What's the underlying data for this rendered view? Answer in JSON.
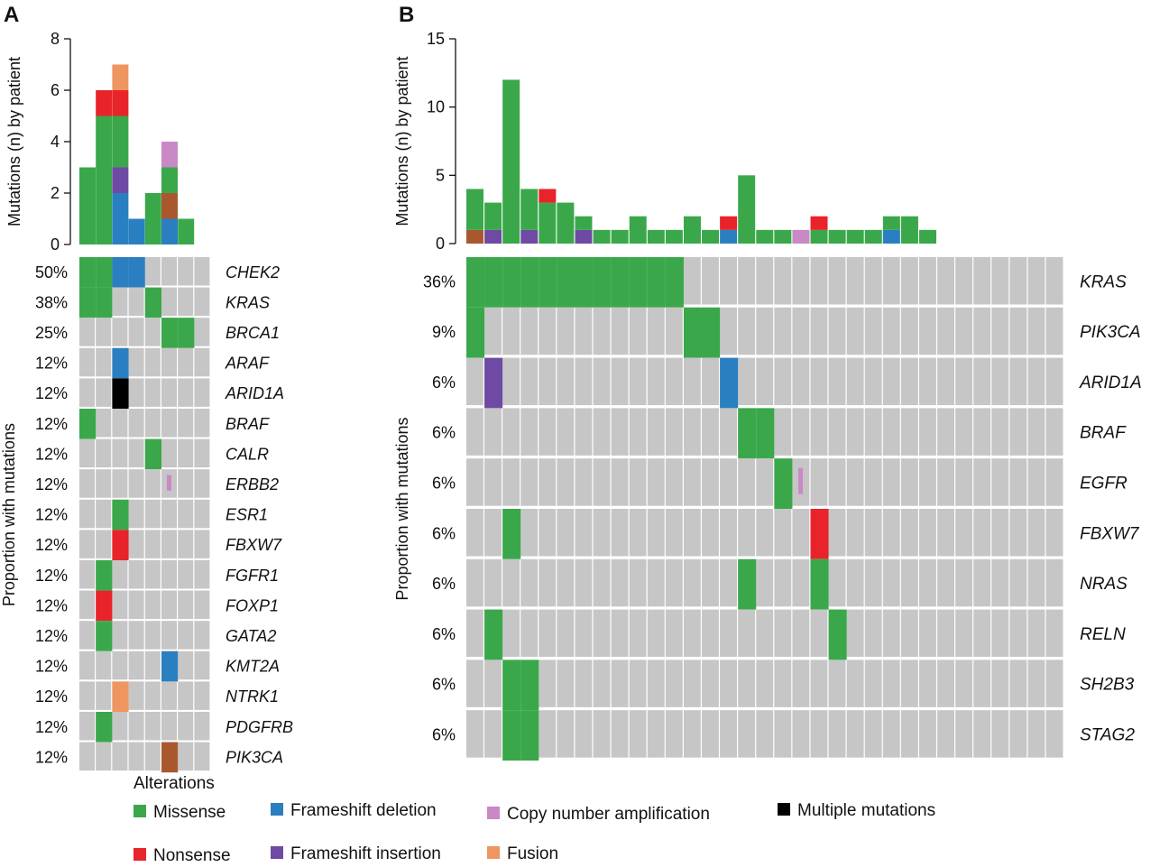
{
  "colors": {
    "missense": "#3aa84a",
    "nonsense": "#e8232a",
    "frameshift_deletion": "#2a7fc0",
    "frameshift_insertion": "#6f4aa4",
    "copy_number_amplification": "#c889c4",
    "multiple_mutations": "#000000",
    "fusion": "#ee9560",
    "inframe_deletion": "#a9582e",
    "empty": "#c6c6c6"
  },
  "legend": {
    "title": "Alterations",
    "items": [
      {
        "key": "missense",
        "label": "Missense"
      },
      {
        "key": "frameshift_deletion",
        "label": "Frameshift deletion"
      },
      {
        "key": "copy_number_amplification",
        "label": "Copy number amplification"
      },
      {
        "key": "multiple_mutations",
        "label": "Multiple mutations"
      },
      {
        "key": "nonsense",
        "label": "Nonsense"
      },
      {
        "key": "frameshift_insertion",
        "label": "Frameshift insertion"
      },
      {
        "key": "fusion",
        "label": "Fusion"
      }
    ]
  },
  "chart_data": [
    {
      "panel": "A",
      "type": "bar",
      "ylabel": "Mutations (n) by patient",
      "ylim": [
        0,
        8
      ],
      "yticks": [
        0,
        2,
        4,
        6,
        8
      ],
      "stacks": [
        [
          {
            "t": "missense",
            "v": 3
          }
        ],
        [
          {
            "t": "missense",
            "v": 5
          },
          {
            "t": "nonsense",
            "v": 1
          }
        ],
        [
          {
            "t": "frameshift_deletion",
            "v": 2
          },
          {
            "t": "frameshift_insertion",
            "v": 1
          },
          {
            "t": "missense",
            "v": 2
          },
          {
            "t": "nonsense",
            "v": 1
          },
          {
            "t": "fusion",
            "v": 1
          }
        ],
        [
          {
            "t": "frameshift_deletion",
            "v": 1
          }
        ],
        [
          {
            "t": "missense",
            "v": 2
          }
        ],
        [
          {
            "t": "frameshift_deletion",
            "v": 1
          },
          {
            "t": "inframe_deletion",
            "v": 1
          },
          {
            "t": "missense",
            "v": 1
          },
          {
            "t": "copy_number_amplification",
            "v": 1
          }
        ],
        [
          {
            "t": "missense",
            "v": 1
          }
        ]
      ],
      "heatmap_ylabel": "Proportion with mutations",
      "n_cols": 8,
      "genes": [
        {
          "gene": "CHEK2",
          "pct": "50%",
          "cells": [
            {
              "c": 0,
              "t": "missense"
            },
            {
              "c": 1,
              "t": "missense"
            },
            {
              "c": 2,
              "t": "frameshift_deletion"
            },
            {
              "c": 3,
              "t": "frameshift_deletion"
            }
          ]
        },
        {
          "gene": "KRAS",
          "pct": "38%",
          "cells": [
            {
              "c": 0,
              "t": "missense"
            },
            {
              "c": 1,
              "t": "missense"
            },
            {
              "c": 4,
              "t": "missense"
            }
          ]
        },
        {
          "gene": "BRCA1",
          "pct": "25%",
          "cells": [
            {
              "c": 5,
              "t": "missense"
            },
            {
              "c": 6,
              "t": "missense"
            }
          ]
        },
        {
          "gene": "ARAF",
          "pct": "12%",
          "cells": [
            {
              "c": 2,
              "t": "frameshift_deletion"
            }
          ]
        },
        {
          "gene": "ARID1A",
          "pct": "12%",
          "cells": [
            {
              "c": 2,
              "t": "multiple_mutations"
            }
          ]
        },
        {
          "gene": "BRAF",
          "pct": "12%",
          "cells": [
            {
              "c": 0,
              "t": "missense"
            }
          ]
        },
        {
          "gene": "CALR",
          "pct": "12%",
          "cells": [
            {
              "c": 4,
              "t": "missense"
            }
          ]
        },
        {
          "gene": "ERBB2",
          "pct": "12%",
          "cells": [
            {
              "c": 5,
              "t": "copy_number_amplification",
              "thin": true
            }
          ]
        },
        {
          "gene": "ESR1",
          "pct": "12%",
          "cells": [
            {
              "c": 2,
              "t": "missense"
            }
          ]
        },
        {
          "gene": "FBXW7",
          "pct": "12%",
          "cells": [
            {
              "c": 2,
              "t": "nonsense"
            }
          ]
        },
        {
          "gene": "FGFR1",
          "pct": "12%",
          "cells": [
            {
              "c": 1,
              "t": "missense"
            }
          ]
        },
        {
          "gene": "FOXP1",
          "pct": "12%",
          "cells": [
            {
              "c": 1,
              "t": "nonsense"
            }
          ]
        },
        {
          "gene": "GATA2",
          "pct": "12%",
          "cells": [
            {
              "c": 1,
              "t": "missense"
            }
          ]
        },
        {
          "gene": "KMT2A",
          "pct": "12%",
          "cells": [
            {
              "c": 5,
              "t": "frameshift_deletion"
            }
          ]
        },
        {
          "gene": "NTRK1",
          "pct": "12%",
          "cells": [
            {
              "c": 2,
              "t": "fusion"
            }
          ]
        },
        {
          "gene": "PDGFRB",
          "pct": "12%",
          "cells": [
            {
              "c": 1,
              "t": "missense"
            }
          ]
        },
        {
          "gene": "PIK3CA",
          "pct": "12%",
          "cells": [
            {
              "c": 5,
              "t": "inframe_deletion"
            }
          ]
        }
      ]
    },
    {
      "panel": "B",
      "type": "bar",
      "ylabel": "Mutations (n) by patient",
      "ylim": [
        0,
        15
      ],
      "yticks": [
        0,
        5,
        10,
        15
      ],
      "stacks": [
        [
          {
            "t": "inframe_deletion",
            "v": 1
          },
          {
            "t": "missense",
            "v": 3
          }
        ],
        [
          {
            "t": "frameshift_insertion",
            "v": 1
          },
          {
            "t": "missense",
            "v": 2
          }
        ],
        [
          {
            "t": "missense",
            "v": 12
          }
        ],
        [
          {
            "t": "frameshift_insertion",
            "v": 1
          },
          {
            "t": "missense",
            "v": 3
          }
        ],
        [
          {
            "t": "missense",
            "v": 3
          },
          {
            "t": "nonsense",
            "v": 1
          }
        ],
        [
          {
            "t": "missense",
            "v": 3
          }
        ],
        [
          {
            "t": "frameshift_insertion",
            "v": 1
          },
          {
            "t": "missense",
            "v": 1
          }
        ],
        [
          {
            "t": "missense",
            "v": 1
          }
        ],
        [
          {
            "t": "missense",
            "v": 1
          }
        ],
        [
          {
            "t": "missense",
            "v": 2
          }
        ],
        [
          {
            "t": "missense",
            "v": 1
          }
        ],
        [
          {
            "t": "missense",
            "v": 1
          }
        ],
        [
          {
            "t": "missense",
            "v": 2
          }
        ],
        [
          {
            "t": "missense",
            "v": 1
          }
        ],
        [
          {
            "t": "frameshift_deletion",
            "v": 1
          },
          {
            "t": "nonsense",
            "v": 1
          }
        ],
        [
          {
            "t": "missense",
            "v": 5
          }
        ],
        [
          {
            "t": "missense",
            "v": 1
          }
        ],
        [
          {
            "t": "missense",
            "v": 1
          }
        ],
        [
          {
            "t": "copy_number_amplification",
            "v": 1
          }
        ],
        [
          {
            "t": "missense",
            "v": 1
          },
          {
            "t": "nonsense",
            "v": 1
          }
        ],
        [
          {
            "t": "missense",
            "v": 1
          }
        ],
        [
          {
            "t": "missense",
            "v": 1
          }
        ],
        [
          {
            "t": "missense",
            "v": 1
          }
        ],
        [
          {
            "t": "frameshift_deletion",
            "v": 1
          },
          {
            "t": "missense",
            "v": 1
          }
        ],
        [
          {
            "t": "missense",
            "v": 2
          }
        ],
        [
          {
            "t": "missense",
            "v": 1
          }
        ]
      ],
      "heatmap_ylabel": "Proportion with mutations",
      "n_cols": 33,
      "genes": [
        {
          "gene": "KRAS",
          "pct": "36%",
          "cells": [
            {
              "c": 0,
              "t": "missense"
            },
            {
              "c": 1,
              "t": "missense"
            },
            {
              "c": 2,
              "t": "missense"
            },
            {
              "c": 3,
              "t": "missense"
            },
            {
              "c": 4,
              "t": "missense"
            },
            {
              "c": 5,
              "t": "missense"
            },
            {
              "c": 6,
              "t": "missense"
            },
            {
              "c": 7,
              "t": "missense"
            },
            {
              "c": 8,
              "t": "missense"
            },
            {
              "c": 9,
              "t": "missense"
            },
            {
              "c": 10,
              "t": "missense"
            },
            {
              "c": 11,
              "t": "missense"
            }
          ]
        },
        {
          "gene": "PIK3CA",
          "pct": "9%",
          "cells": [
            {
              "c": 0,
              "t": "missense"
            },
            {
              "c": 12,
              "t": "missense"
            },
            {
              "c": 13,
              "t": "missense"
            }
          ]
        },
        {
          "gene": "ARID1A",
          "pct": "6%",
          "cells": [
            {
              "c": 1,
              "t": "frameshift_insertion"
            },
            {
              "c": 14,
              "t": "frameshift_deletion"
            }
          ]
        },
        {
          "gene": "BRAF",
          "pct": "6%",
          "cells": [
            {
              "c": 15,
              "t": "missense"
            },
            {
              "c": 16,
              "t": "missense"
            }
          ]
        },
        {
          "gene": "EGFR",
          "pct": "6%",
          "cells": [
            {
              "c": 17,
              "t": "missense"
            },
            {
              "c": 18,
              "t": "copy_number_amplification",
              "thin": true
            }
          ]
        },
        {
          "gene": "FBXW7",
          "pct": "6%",
          "cells": [
            {
              "c": 2,
              "t": "missense"
            },
            {
              "c": 19,
              "t": "nonsense"
            }
          ]
        },
        {
          "gene": "NRAS",
          "pct": "6%",
          "cells": [
            {
              "c": 15,
              "t": "missense"
            },
            {
              "c": 19,
              "t": "missense"
            }
          ]
        },
        {
          "gene": "RELN",
          "pct": "6%",
          "cells": [
            {
              "c": 1,
              "t": "missense"
            },
            {
              "c": 20,
              "t": "missense"
            }
          ]
        },
        {
          "gene": "SH2B3",
          "pct": "6%",
          "cells": [
            {
              "c": 2,
              "t": "missense"
            },
            {
              "c": 3,
              "t": "missense"
            }
          ]
        },
        {
          "gene": "STAG2",
          "pct": "6%",
          "cells": [
            {
              "c": 2,
              "t": "missense"
            },
            {
              "c": 3,
              "t": "missense"
            }
          ]
        }
      ]
    }
  ]
}
